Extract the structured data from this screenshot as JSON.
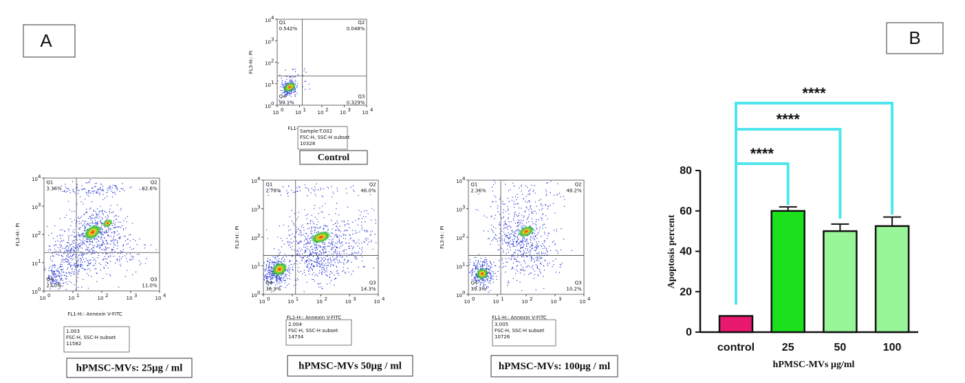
{
  "panels": [
    "A",
    "B"
  ],
  "flow": {
    "x_label": "FL1-H:: Annexin V-FITC",
    "y_label": "FL3-H:: PI",
    "tick_base": "10",
    "tick_exponents": [
      "0",
      "1",
      "2",
      "3",
      "4"
    ],
    "plots": [
      {
        "quadrants": [
          {
            "name": "Q1",
            "pct": "0.542%"
          },
          {
            "name": "Q2",
            "pct": "0.048%"
          },
          {
            "name": "Q3",
            "pct": "0.329%"
          },
          {
            "name": "Q4",
            "pct": "99.1%"
          }
        ],
        "info": [
          "Sample-T.002",
          "FSC-H, SSC-H subset",
          "10328"
        ],
        "caption": "Control"
      },
      {
        "quadrants": [
          {
            "name": "Q1",
            "pct": "3.36%"
          },
          {
            "name": "Q2",
            "pct": "62.6%"
          },
          {
            "name": "Q3",
            "pct": "11.0%"
          },
          {
            "name": "Q4",
            "pct": "23.0%"
          }
        ],
        "info": [
          "1.003",
          "FSC-H, SSC-H subset",
          "11582"
        ],
        "caption": "hPMSC-MVs: 25μg / ml"
      },
      {
        "quadrants": [
          {
            "name": "Q1",
            "pct": "2.78%"
          },
          {
            "name": "Q2",
            "pct": "46.0%"
          },
          {
            "name": "Q3",
            "pct": "14.3%"
          },
          {
            "name": "Q4",
            "pct": "36.9%"
          }
        ],
        "info": [
          "2.004",
          "FSC-H, SSC-H subset",
          "14734"
        ],
        "caption": "hPMSC-MVs 50μg / ml"
      },
      {
        "quadrants": [
          {
            "name": "Q1",
            "pct": "2.36%"
          },
          {
            "name": "Q2",
            "pct": "48.2%"
          },
          {
            "name": "Q3",
            "pct": "10.2%"
          },
          {
            "name": "Q4",
            "pct": "39.3%"
          }
        ],
        "info": [
          "3.005",
          "FSC-H, SSC-H subset",
          "10726"
        ],
        "caption": "hPMSC-MVs: 100μg / ml"
      }
    ]
  },
  "chart_data": {
    "type": "bar",
    "categories": [
      "control",
      "25",
      "50",
      "100"
    ],
    "values": [
      8,
      60,
      50,
      52.5
    ],
    "errors": [
      0,
      2,
      3.5,
      4.5
    ],
    "colors": [
      "#e8196e",
      "#1de01d",
      "#98f598",
      "#98f598"
    ],
    "ylim": [
      0,
      80
    ],
    "yticks": [
      0,
      20,
      40,
      60,
      80
    ],
    "y_label": "Apoptosis percent",
    "x_label": "hPMSC-MVs µg/ml",
    "significance": [
      {
        "groups": [
          "control",
          "25"
        ],
        "label": "****"
      },
      {
        "groups": [
          "control",
          "50"
        ],
        "label": "****"
      },
      {
        "groups": [
          "control",
          "100"
        ],
        "label": "****"
      }
    ],
    "significance_color": "#4ee6ec"
  }
}
